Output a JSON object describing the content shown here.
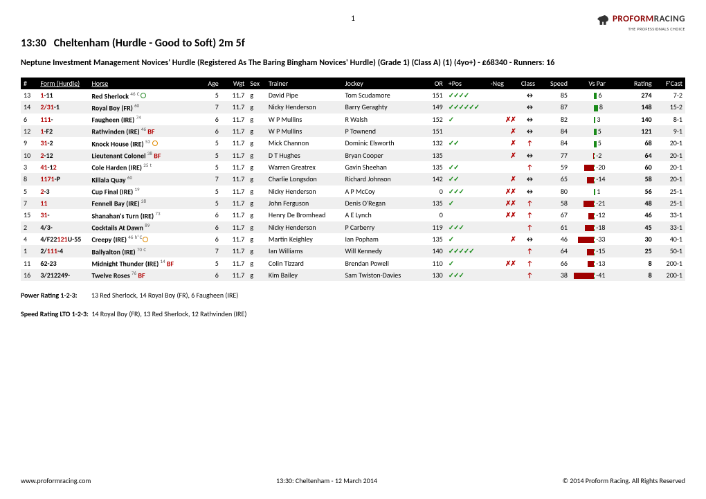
{
  "page_number": "1",
  "logo": {
    "brand": "PROFORM",
    "brand2": "RACING",
    "tagline": "THE PROFESSIONALS CHOICE"
  },
  "race": {
    "time": "13:30",
    "venue": "Cheltenham (Hurdle - Good to Soft) 2m 5f",
    "name": "Neptune Investment Management Novices' Hurdle (Registered As The Baring Bingham Novices' Hurdle) (Grade 1) (Class A) (1) (4yo+) - £68340 - Runners: 16"
  },
  "columns": [
    "#",
    "Form (Hurdle)",
    "Horse",
    "Age",
    "Wgt",
    "Sex",
    "Trainer",
    "Jockey",
    "OR",
    "+Pos",
    "-Neg",
    "Class",
    "Speed",
    "Vs Par",
    "Rating",
    "F'Cast"
  ],
  "rows": [
    {
      "n": "13",
      "form_r": "1",
      "form_b": "-11",
      "horse": "Red Sherlock",
      "sup": "46",
      "extra": "CD",
      "age": "5",
      "wgt": "11.7",
      "sex": "g",
      "trainer": "David Pipe",
      "jockey": "Tom Scudamore",
      "or": "151",
      "pos": "✓✓✓✓",
      "neg": "",
      "cls": "↔",
      "spd": "85",
      "par": 6,
      "rating": "274",
      "fc": "7-2"
    },
    {
      "n": "14",
      "form_r": "2/31",
      "form_b": "-1",
      "horse": "Royal Boy (FR)",
      "sup": "60",
      "extra": "",
      "age": "7",
      "wgt": "11.7",
      "sex": "g",
      "trainer": "Nicky Henderson",
      "jockey": "Barry Geraghty",
      "or": "149",
      "pos": "✓✓✓✓✓✓",
      "neg": "",
      "cls": "↔",
      "spd": "87",
      "par": 8,
      "rating": "148",
      "fc": "15-2"
    },
    {
      "n": "6",
      "form_r": "111",
      "form_b": "-",
      "horse": "Faugheen (IRE)",
      "sup": "74",
      "extra": "",
      "age": "6",
      "wgt": "11.7",
      "sex": "g",
      "trainer": "W P Mullins",
      "jockey": "R Walsh",
      "or": "152",
      "pos": "✓",
      "neg": "✗✗",
      "cls": "↔",
      "spd": "82",
      "par": 3,
      "rating": "140",
      "fc": "8-1"
    },
    {
      "n": "12",
      "form_r": "1",
      "form_b": "-F2",
      "horse": "Rathvinden (IRE)",
      "sup": "46",
      "extra": "BF",
      "age": "6",
      "wgt": "11.7",
      "sex": "g",
      "trainer": "W P Mullins",
      "jockey": "P Townend",
      "or": "151",
      "pos": "",
      "neg": "✗",
      "cls": "↔",
      "spd": "84",
      "par": 5,
      "rating": "121",
      "fc": "9-1"
    },
    {
      "n": "9",
      "form_r": "31",
      "form_b": "-2",
      "horse": "Knock House (IRE)",
      "sup": "53",
      "extra": "O",
      "age": "5",
      "wgt": "11.7",
      "sex": "g",
      "trainer": "Mick Channon",
      "jockey": "Dominic Elsworth",
      "or": "132",
      "pos": "✓✓",
      "neg": "✗",
      "cls": "↑",
      "spd": "84",
      "par": 5,
      "rating": "68",
      "fc": "20-1"
    },
    {
      "n": "10",
      "form_r": "2",
      "form_b": "-12",
      "horse": "Lieutenant Colonel",
      "sup": "38",
      "extra": "BF",
      "age": "5",
      "wgt": "11.7",
      "sex": "g",
      "trainer": "D T Hughes",
      "jockey": "Bryan Cooper",
      "or": "135",
      "pos": "",
      "neg": "✗",
      "cls": "↔",
      "spd": "77",
      "par": -2,
      "rating": "64",
      "fc": "20-1"
    },
    {
      "n": "3",
      "form_r": "41",
      "form_b": "-1",
      "form_r2": "2",
      "horse": "Cole Harden (IRE)",
      "sup": "25",
      "extra": "t",
      "age": "5",
      "wgt": "11.7",
      "sex": "g",
      "trainer": "Warren Greatrex",
      "jockey": "Gavin Sheehan",
      "or": "135",
      "pos": "✓✓",
      "neg": "",
      "cls": "↑",
      "spd": "59",
      "par": -20,
      "rating": "60",
      "fc": "20-1"
    },
    {
      "n": "8",
      "form_r": "1171",
      "form_b": "-P",
      "horse": "Killala Quay",
      "sup": "60",
      "extra": "",
      "age": "7",
      "wgt": "11.7",
      "sex": "g",
      "trainer": "Charlie Longsdon",
      "jockey": "Richard Johnson",
      "or": "142",
      "pos": "✓✓",
      "neg": "✗",
      "cls": "↔",
      "spd": "65",
      "par": -14,
      "rating": "58",
      "fc": "20-1"
    },
    {
      "n": "5",
      "form_r": "2",
      "form_b": "-3",
      "horse": "Cup Final (IRE)",
      "sup": "19",
      "extra": "",
      "age": "5",
      "wgt": "11.7",
      "sex": "g",
      "trainer": "Nicky Henderson",
      "jockey": "A P McCoy",
      "or": "0",
      "pos": "✓✓✓",
      "neg": "✗✗",
      "cls": "↔",
      "spd": "80",
      "par": 1,
      "rating": "56",
      "fc": "25-1"
    },
    {
      "n": "7",
      "form_r": "11",
      "form_b": "",
      "horse": "Fennell Bay (IRE)",
      "sup": "28",
      "extra": "",
      "age": "5",
      "wgt": "11.7",
      "sex": "g",
      "trainer": "John Ferguson",
      "jockey": "Denis O'Regan",
      "or": "135",
      "pos": "✓",
      "neg": "✗✗",
      "cls": "↑",
      "spd": "58",
      "par": -21,
      "rating": "48",
      "fc": "25-1"
    },
    {
      "n": "15",
      "form_r": "31",
      "form_b": "-",
      "horse": "Shanahan's Turn (IRE)",
      "sup": "73",
      "extra": "",
      "age": "6",
      "wgt": "11.7",
      "sex": "g",
      "trainer": "Henry De Bromhead",
      "jockey": "A E Lynch",
      "or": "0",
      "pos": "",
      "neg": "✗✗",
      "cls": "↑",
      "spd": "67",
      "par": -12,
      "rating": "46",
      "fc": "33-1"
    },
    {
      "n": "2",
      "form_r": "",
      "form_b": "4/3-",
      "horse": "Cocktails At Dawn",
      "sup": "89",
      "extra": "",
      "age": "6",
      "wgt": "11.7",
      "sex": "g",
      "trainer": "Nicky Henderson",
      "jockey": "P Carberry",
      "or": "119",
      "pos": "✓✓✓",
      "neg": "",
      "cls": "↑",
      "spd": "61",
      "par": -18,
      "rating": "45",
      "fc": "33-1"
    },
    {
      "n": "4",
      "form_r": "",
      "form_b": "4/F22",
      "form_r2": "121",
      "form_b2": "U-55",
      "horse": "Creepy (IRE)",
      "sup": "46",
      "extra": "hCD",
      "age": "6",
      "wgt": "11.7",
      "sex": "g",
      "trainer": "Martin Keighley",
      "jockey": "Ian Popham",
      "or": "135",
      "pos": "✓",
      "neg": "✗",
      "cls": "↔",
      "spd": "46",
      "par": -33,
      "rating": "30",
      "fc": "40-1"
    },
    {
      "n": "1",
      "form_r": "",
      "form_b": "2/",
      "form_r2": "111",
      "form_b2": "-4",
      "horse": "Ballyalton (IRE)",
      "sup": "70",
      "extra": "C",
      "age": "7",
      "wgt": "11.7",
      "sex": "g",
      "trainer": "Ian Williams",
      "jockey": "Will Kennedy",
      "or": "140",
      "pos": "✓✓✓✓✓",
      "neg": "",
      "cls": "↑",
      "spd": "64",
      "par": -15,
      "rating": "25",
      "fc": "50-1"
    },
    {
      "n": "11",
      "form_r": "",
      "form_b": "62-23",
      "horse": "Midnight Thunder (IRE)",
      "sup": "14",
      "extra": "BF",
      "age": "5",
      "wgt": "11.7",
      "sex": "g",
      "trainer": "Colin Tizzard",
      "jockey": "Brendan Powell",
      "or": "110",
      "pos": "✓",
      "neg": "✗✗",
      "cls": "↑",
      "spd": "66",
      "par": -13,
      "rating": "8",
      "fc": "200-1"
    },
    {
      "n": "16",
      "form_r": "",
      "form_b": "3/212249-",
      "horse": "Twelve Roses",
      "sup": "76",
      "extra": "BF",
      "age": "6",
      "wgt": "11.7",
      "sex": "g",
      "trainer": "Kim Bailey",
      "jockey": "Sam Twiston-Davies",
      "or": "130",
      "pos": "✓✓✓",
      "neg": "",
      "cls": "↑",
      "spd": "38",
      "par": -41,
      "rating": "8",
      "fc": "200-1"
    }
  ],
  "power_label": "Power Rating 1-2-3:",
  "power": "13 Red Sherlock, 14 Royal Boy (FR), 6 Faugheen (IRE)",
  "speed_label": "Speed Rating LTO 1-2-3:",
  "speed": "14 Royal Boy (FR), 13 Red Sherlock, 12 Rathvinden (IRE)",
  "footer": {
    "left": "www.proformracing.com",
    "center": "13:30: Cheltenham - 12 March 2014",
    "right": "© 2014 Proform Racing. All Rights Reserved"
  },
  "bar_scale": 0.7
}
